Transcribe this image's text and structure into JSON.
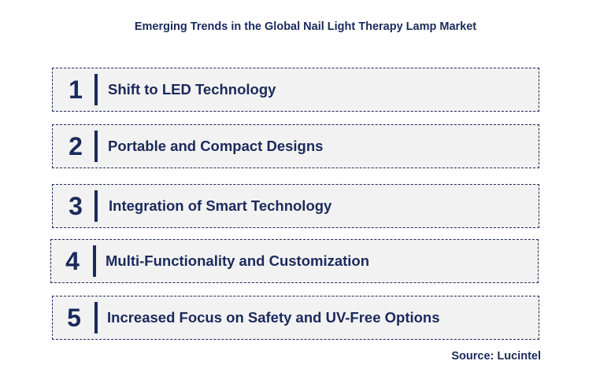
{
  "title": "Emerging Trends in the Global Nail Light Therapy Lamp Market",
  "trends": [
    {
      "number": "1",
      "label": "Shift to LED Technology"
    },
    {
      "number": "2",
      "label": "Portable and Compact Designs"
    },
    {
      "number": "3",
      "label": "Integration of Smart Technology"
    },
    {
      "number": "4",
      "label": "Multi-Functionality and Customization"
    },
    {
      "number": "5",
      "label": "Increased Focus on Safety and UV-Free Options"
    }
  ],
  "source": "Source: Lucintel",
  "colors": {
    "text": "#1b2a5c",
    "box_fill": "#f2f2f2",
    "box_border": "#1b2a5c"
  }
}
